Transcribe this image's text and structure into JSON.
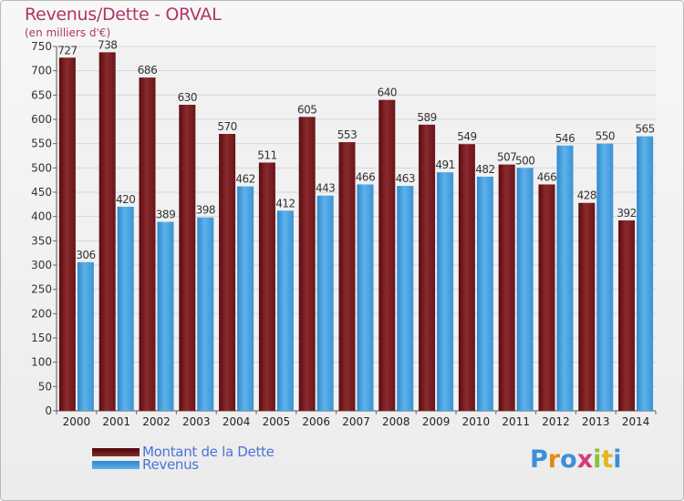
{
  "header": {
    "title": "Revenus/Dette - ORVAL",
    "subtitle": "(en milliers d'€)"
  },
  "legend": {
    "items": [
      {
        "label": "Montant de la Dette",
        "color": "#7a1f22"
      },
      {
        "label": "Revenus",
        "color": "#4aa3e0"
      }
    ]
  },
  "logo": {
    "text": "Proxiti"
  },
  "chart_data": {
    "type": "bar",
    "categories": [
      "2000",
      "2001",
      "2002",
      "2003",
      "2004",
      "2005",
      "2006",
      "2007",
      "2008",
      "2009",
      "2010",
      "2011",
      "2012",
      "2013",
      "2014"
    ],
    "series": [
      {
        "name": "Montant de la Dette",
        "color": "#7a1f22",
        "values": [
          727,
          738,
          686,
          630,
          570,
          511,
          605,
          553,
          640,
          589,
          549,
          507,
          466,
          428,
          392
        ]
      },
      {
        "name": "Revenus",
        "color": "#4aa3e0",
        "values": [
          306,
          420,
          389,
          398,
          462,
          412,
          443,
          466,
          463,
          491,
          482,
          500,
          546,
          550,
          565
        ]
      }
    ],
    "title": "Revenus/Dette - ORVAL",
    "subtitle": "(en milliers d'€)",
    "ylim": [
      0,
      750
    ],
    "yticks": [
      0,
      50,
      100,
      150,
      200,
      250,
      300,
      350,
      400,
      450,
      500,
      550,
      600,
      650,
      700,
      750
    ],
    "grid": true,
    "legend_position": "bottom-left"
  }
}
